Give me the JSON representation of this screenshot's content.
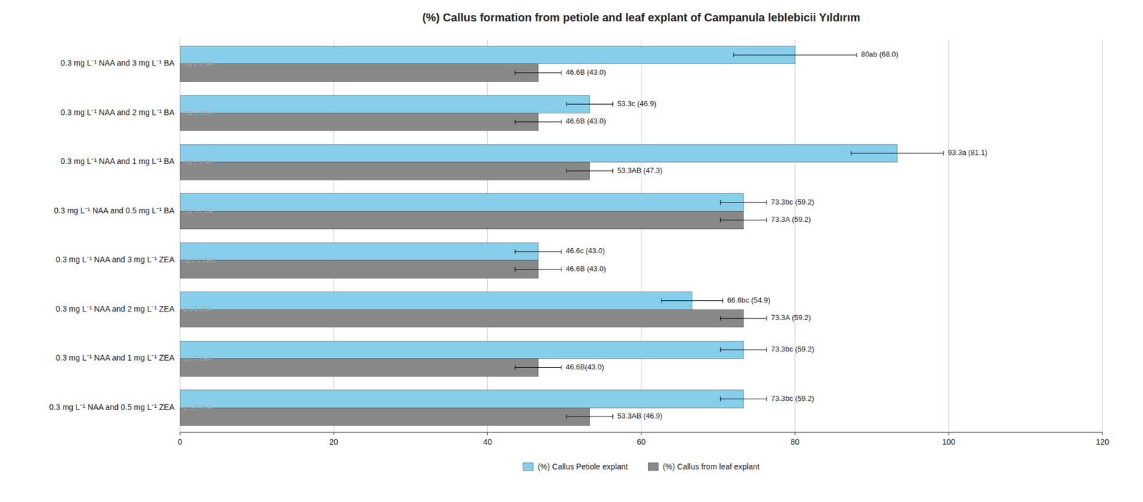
{
  "chart_data": {
    "type": "bar",
    "orientation": "horizontal",
    "title": "(%) Callus formation from petiole and leaf explant of Campanula leblebicii Yıldırım",
    "categories": [
      "0.3 mg L⁻¹ NAA and 3 mg L⁻¹ BA",
      "0.3 mg L⁻¹ NAA and 2 mg L⁻¹ BA",
      "0.3 mg L⁻¹ NAA and 1 mg L⁻¹ BA",
      "0.3 mg L⁻¹ NAA and 0.5 mg L⁻¹ BA",
      "0.3 mg L⁻¹ NAA and 3 mg L⁻¹ ZEA",
      "0.3 mg L⁻¹ NAA and 2 mg L⁻¹ ZEA",
      "0.3 mg L⁻¹ NAA and 1 mg L⁻¹ ZEA",
      "0.3 mg L⁻¹ NAA and 0.5 mg L⁻¹ ZEA"
    ],
    "series": [
      {
        "name": "(%) Callus Petiole explant",
        "color": "#87CEEB",
        "values": [
          80.0,
          53.3,
          93.3,
          73.3,
          46.6,
          66.6,
          73.3,
          73.3
        ],
        "errors": [
          8.0,
          3.0,
          6.0,
          3.0,
          3.0,
          4.0,
          3.0,
          3.0
        ],
        "value_labels": [
          "80ab (68.0)",
          "53.3c (46.9)",
          "93.3a (81.1)",
          "73.3bc (59.2)",
          "46.6c (43.0)",
          "66.6bc (54.9)",
          "73.3bc (59.2)",
          "73.3bc (59.2)"
        ]
      },
      {
        "name": "(%) Callus from leaf explant",
        "color": "#888888",
        "values": [
          46.6,
          46.6,
          53.3,
          73.3,
          46.6,
          73.3,
          46.6,
          53.3
        ],
        "errors": [
          3.0,
          3.0,
          3.0,
          3.0,
          3.0,
          3.0,
          3.0,
          3.0
        ],
        "value_labels": [
          "46.6B (43.0)",
          "46.6B (43.0)",
          "53.3AB (47.3)",
          "73.3A (59.2)",
          "46.6B (43.0)",
          "73.3A (59.2)",
          "46.6B(43.0)",
          "53.3AB (46.9)"
        ]
      }
    ],
    "annotations": [
      "mg L-1 BA",
      "mg L-1 BA",
      "mg L-1 BA",
      "mg L-1 BA",
      "ng L-1 ZEA",
      "g L-1 ZEA",
      "g L-1 ZEA",
      "g L-1 ZEA"
    ],
    "xlim": [
      0,
      120
    ],
    "xticks": [
      0,
      20,
      40,
      60,
      80,
      100,
      120
    ],
    "grid": true,
    "data_labels": true,
    "legend": "bottom"
  }
}
